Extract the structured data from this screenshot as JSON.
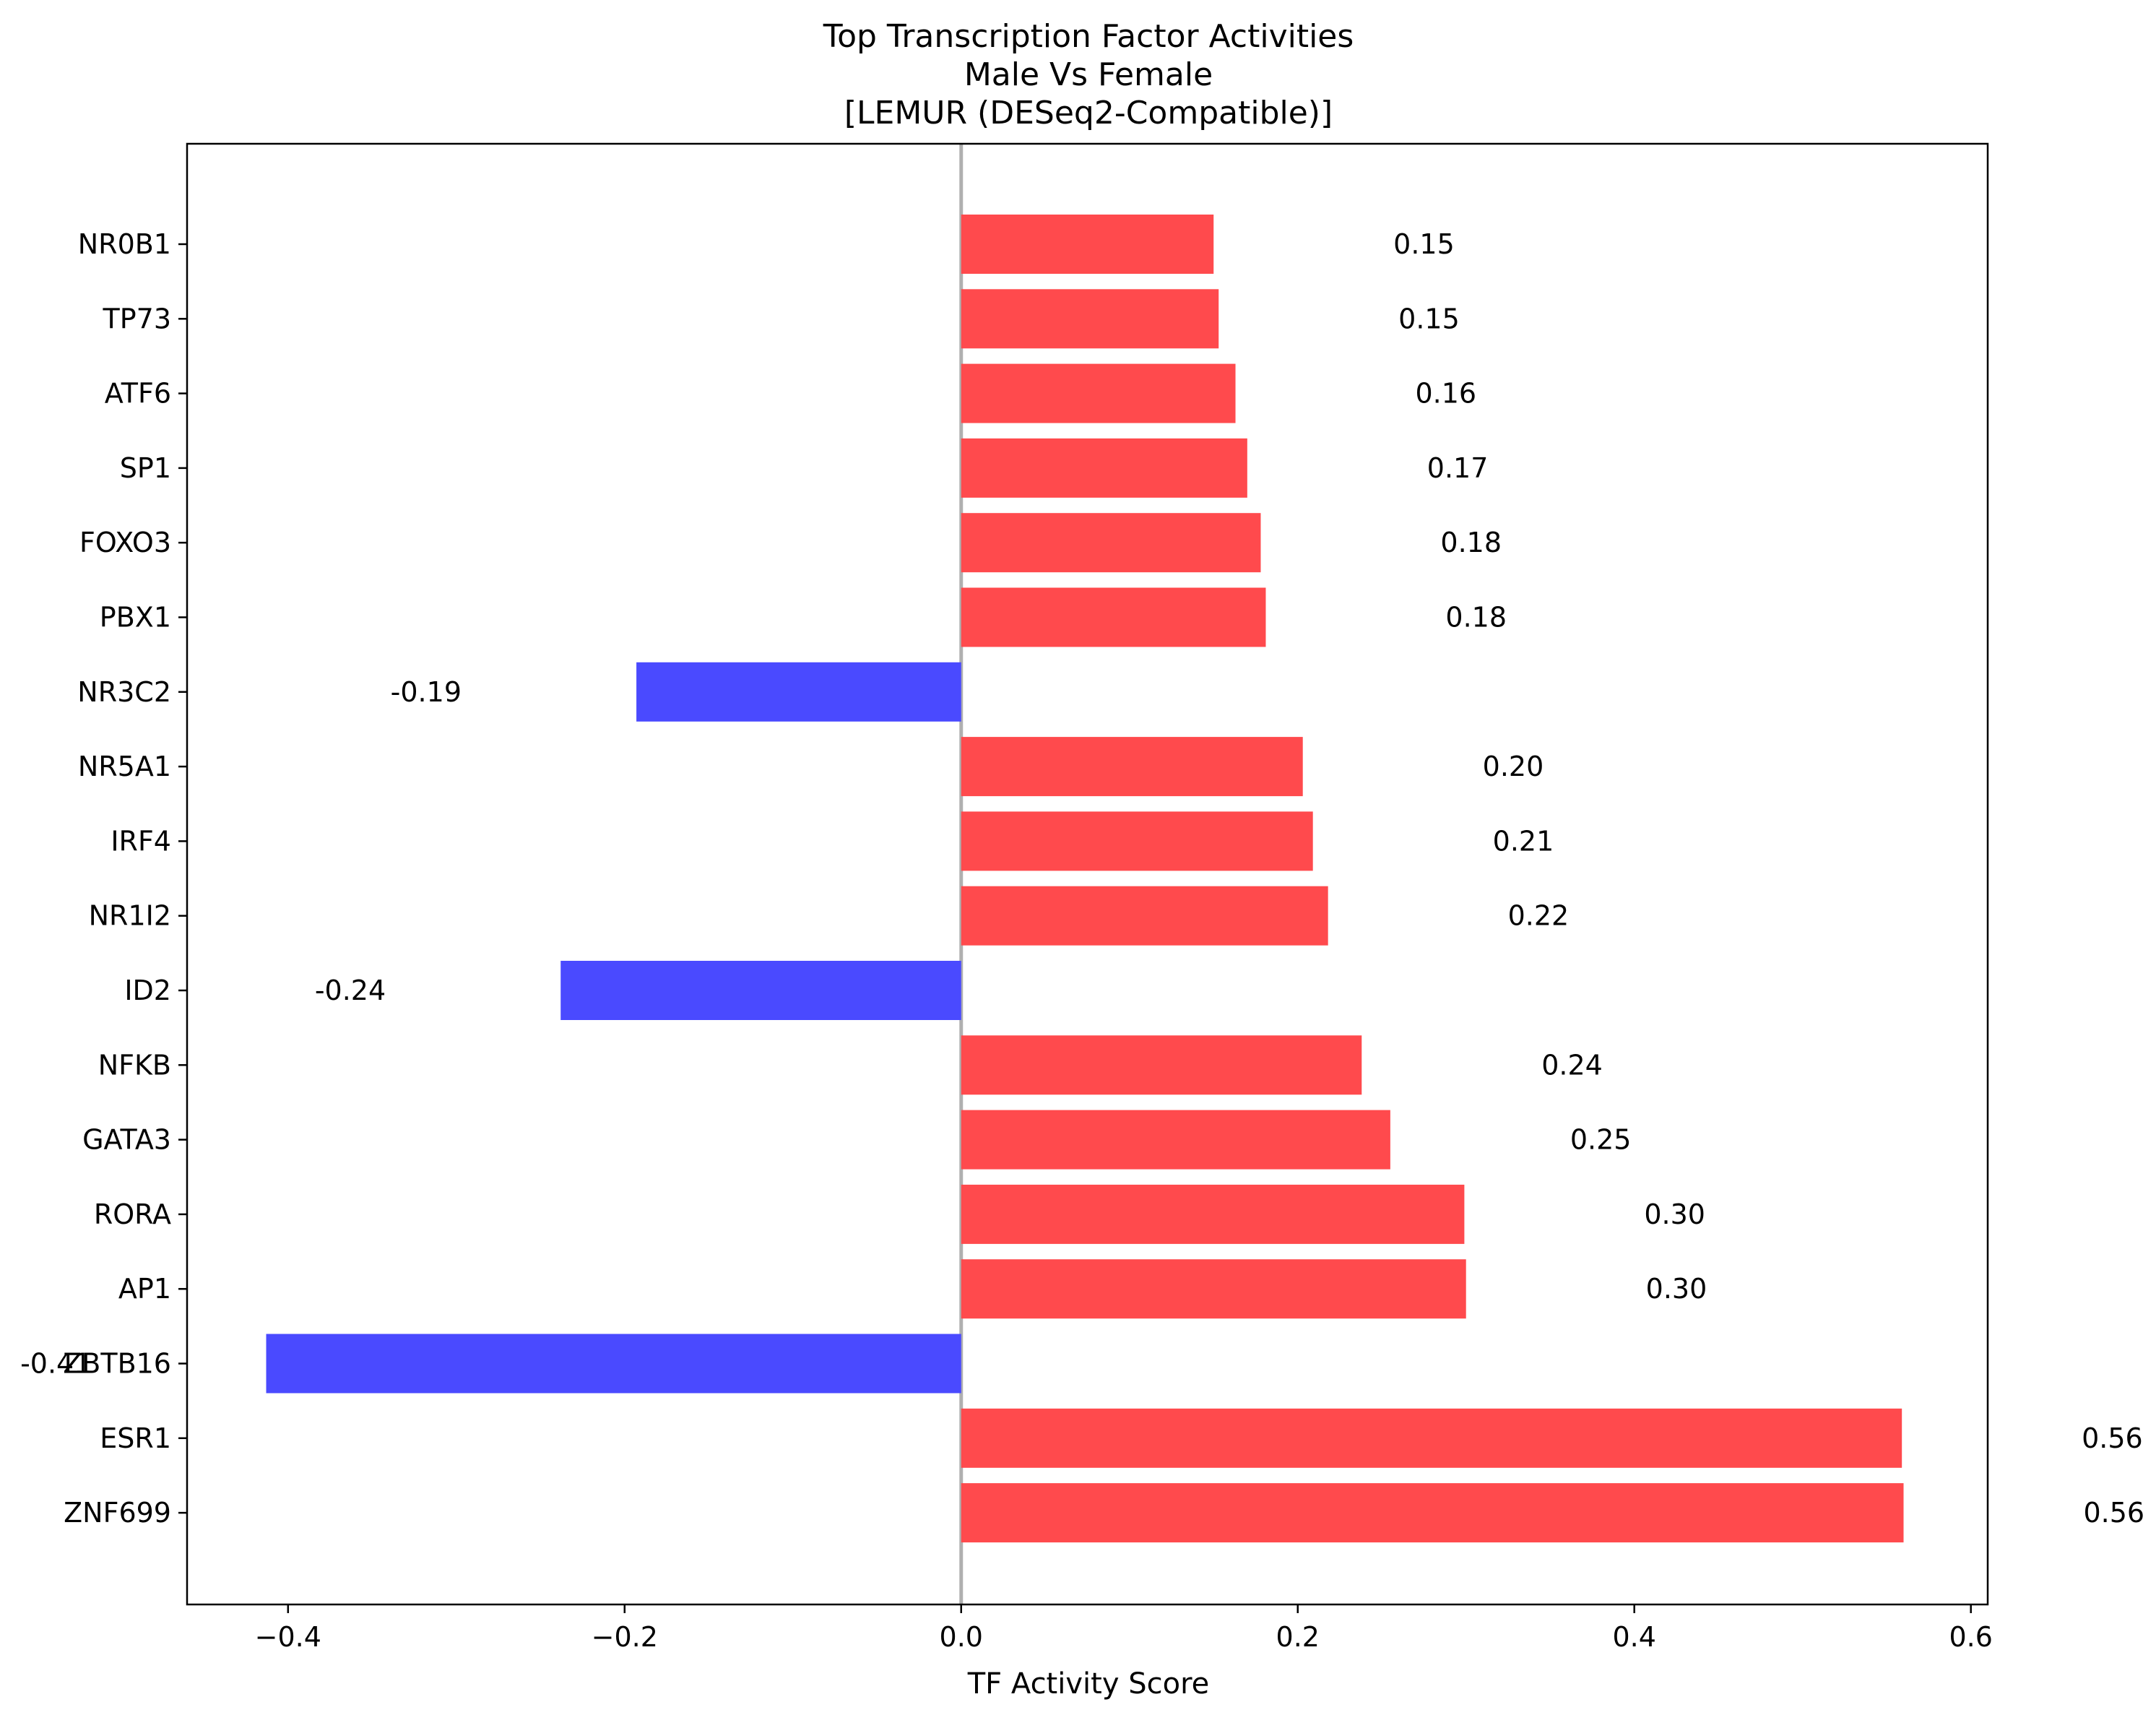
{
  "chart_data": {
    "type": "bar",
    "orientation": "horizontal",
    "title": [
      "Top Transcription Factor Activities",
      "Male Vs Female",
      "[LEMUR (DESeq2-Compatible)]"
    ],
    "xlabel": "TF Activity Score",
    "ylabel": "",
    "xlim": [
      -0.46,
      0.61
    ],
    "xticks": [
      -0.4,
      -0.2,
      0.0,
      0.2,
      0.4,
      0.6
    ],
    "xtick_labels": [
      "−0.4",
      "−0.2",
      "0.0",
      "0.2",
      "0.4",
      "0.6"
    ],
    "grid": false,
    "categories": [
      "NR0B1",
      "TP73",
      "ATF6",
      "SP1",
      "FOXO3",
      "PBX1",
      "NR3C2",
      "NR5A1",
      "IRF4",
      "NR1I2",
      "ID2",
      "NFKB",
      "GATA3",
      "RORA",
      "AP1",
      "ZBTB16",
      "ESR1",
      "ZNF699"
    ],
    "values": [
      0.15,
      0.153,
      0.163,
      0.17,
      0.178,
      0.181,
      -0.193,
      0.203,
      0.209,
      0.218,
      -0.238,
      0.238,
      0.255,
      0.299,
      0.3,
      -0.413,
      0.559,
      0.56
    ],
    "value_labels": [
      "0.15",
      "0.15",
      "0.16",
      "0.17",
      "0.18",
      "0.18",
      "-0.19",
      "0.20",
      "0.21",
      "0.22",
      "-0.24",
      "0.24",
      "0.25",
      "0.30",
      "0.30",
      "-0.41",
      "0.56",
      "0.56"
    ],
    "colors": {
      "positive": "#ff4a4d",
      "negative": "#4a4aff",
      "zero_line": "#b0b0b0",
      "axes": "#000000"
    }
  }
}
